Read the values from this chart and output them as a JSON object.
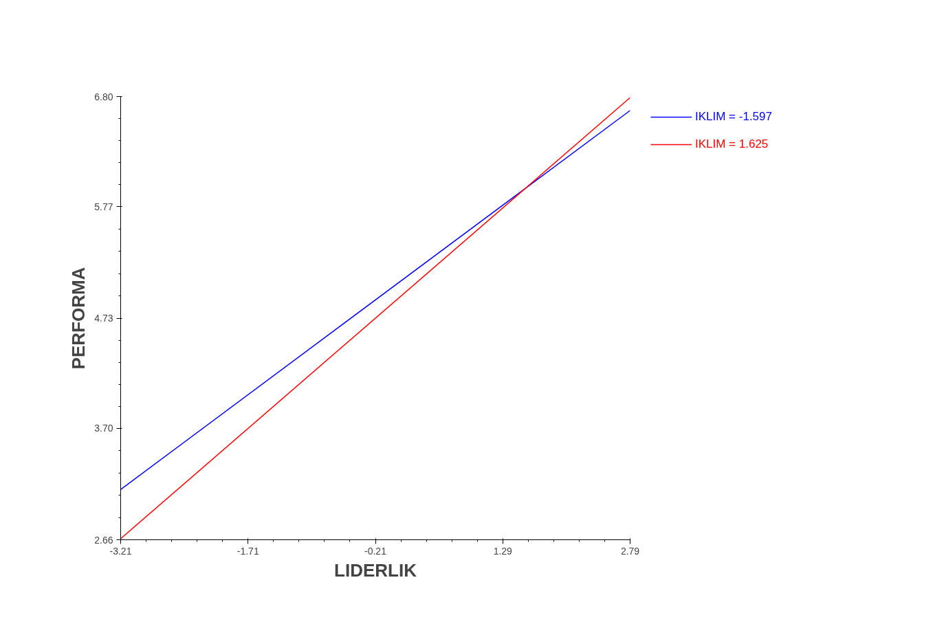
{
  "chart_data": {
    "type": "line",
    "xlabel": "LIDERLIK",
    "ylabel": "PERFORMA",
    "x": [
      -3.21,
      2.79
    ],
    "series": [
      {
        "name": "IKLIM = -1.597",
        "color": "#0000ff",
        "values": [
          3.13,
          6.67
        ]
      },
      {
        "name": "IKLIM = 1.625",
        "color": "#ff0000",
        "values": [
          2.67,
          6.79
        ]
      }
    ],
    "xlim": [
      -3.21,
      2.79
    ],
    "ylim": [
      2.66,
      6.8
    ],
    "xticks": [
      -3.21,
      -1.71,
      -0.21,
      1.29,
      2.79
    ],
    "yticks": [
      {
        "value": 2.66,
        "label": "2.66"
      },
      {
        "value": 3.7,
        "label": "3.70"
      },
      {
        "value": 4.73,
        "label": "4.73"
      },
      {
        "value": 5.77,
        "label": "5.77"
      },
      {
        "value": 6.8,
        "label": "6.80"
      }
    ],
    "grid": false,
    "legend": "top right",
    "line_style": "solid",
    "marker": "none"
  }
}
